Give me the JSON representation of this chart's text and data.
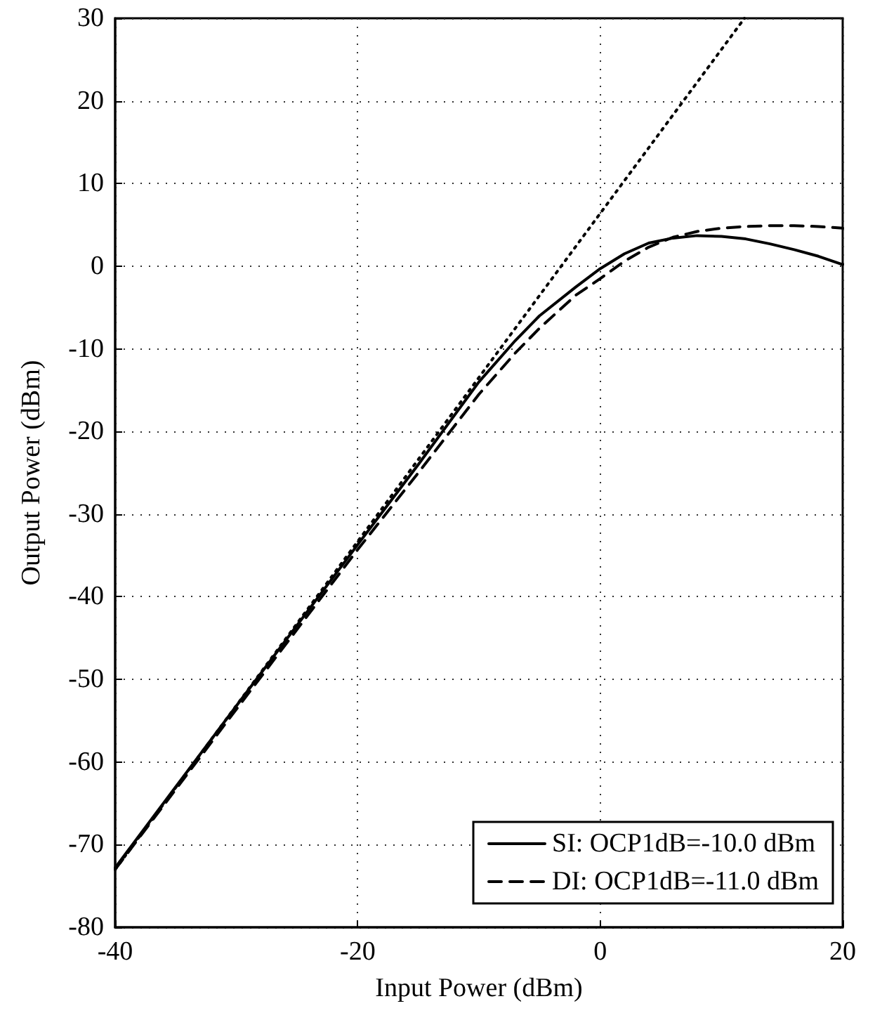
{
  "chart_data": {
    "type": "line",
    "xlabel": "Input Power (dBm)",
    "ylabel": "Output Power (dBm)",
    "xlim": [
      -40,
      20
    ],
    "xticks": [
      -40,
      -20,
      0,
      20
    ],
    "ylim": [
      -80,
      30
    ],
    "yticks": [
      -80,
      -70,
      -60,
      -50,
      -40,
      -30,
      -20,
      -10,
      0,
      10,
      20,
      30
    ],
    "grid": true,
    "legend": "bottom right",
    "marker": "none",
    "series": [
      {
        "name": "SI: OCP1dB=-10.0 dBm",
        "color": "#000000",
        "line_style": "solid",
        "x": [
          -40,
          -30,
          -20,
          -15,
          -10,
          -7,
          -5,
          -2,
          0,
          2,
          4,
          6,
          8,
          10,
          12,
          14,
          16,
          18,
          20
        ],
        "values": [
          -72.8,
          -53.2,
          -33.7,
          -24,
          -14,
          -9,
          -6,
          -2.5,
          -0.3,
          1.5,
          2.8,
          3.4,
          3.7,
          3.6,
          3.3,
          2.7,
          2,
          1.2,
          0.2
        ]
      },
      {
        "name": "DI: OCP1dB=-11.0 dBm",
        "color": "#000000",
        "line_style": "dashed",
        "x": [
          -40,
          -30,
          -20,
          -15,
          -10,
          -7,
          -5,
          -2,
          0,
          2,
          4,
          6,
          8,
          10,
          12,
          14,
          16,
          18,
          20
        ],
        "values": [
          -73,
          -53.6,
          -34.3,
          -25,
          -15.5,
          -10.5,
          -7.5,
          -3.5,
          -1.5,
          0.6,
          2.3,
          3.5,
          4.2,
          4.6,
          4.8,
          4.9,
          4.9,
          4.8,
          4.6
        ]
      },
      {
        "color": "#000000",
        "line_style": "dotted",
        "x": [
          -40,
          11.9
        ],
        "values": [
          -73,
          30
        ]
      }
    ]
  }
}
